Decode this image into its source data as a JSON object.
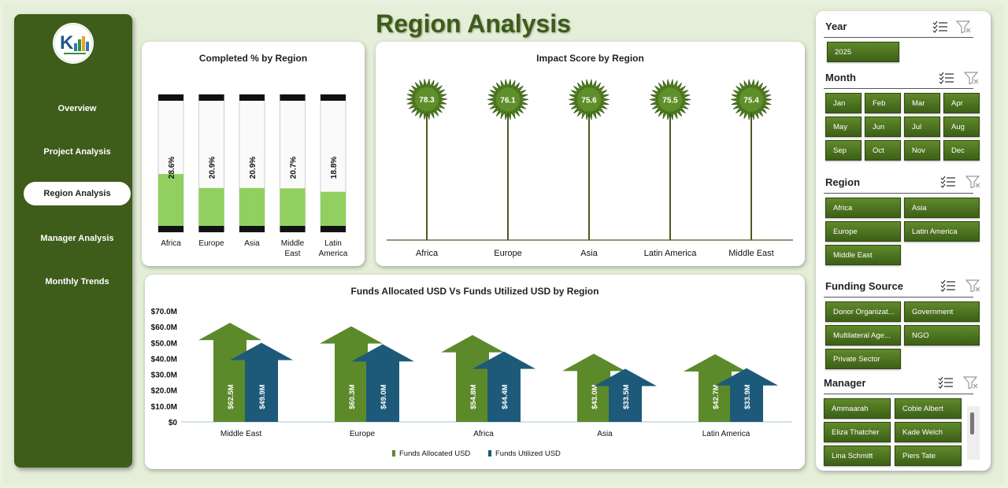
{
  "title": "Region Analysis",
  "colors": {
    "dark_green": "#3e5c1a",
    "bar_green": "#91d060",
    "allocated": "#5c8a2a",
    "utilized": "#1d5a7a",
    "stem": "#4d5a24"
  },
  "sidebar": {
    "items": [
      {
        "label": "Overview",
        "active": false
      },
      {
        "label": "Project Analysis",
        "active": false
      },
      {
        "label": "Region Analysis",
        "active": true
      },
      {
        "label": "Manager Analysis",
        "active": false
      },
      {
        "label": "Monthly Trends",
        "active": false
      }
    ]
  },
  "completed_chart": {
    "title": "Completed % by Region",
    "chart_data": {
      "type": "bar",
      "categories": [
        "Africa",
        "Europe",
        "Asia",
        "Middle East",
        "Latin America"
      ],
      "values": [
        28.6,
        20.9,
        20.9,
        20.7,
        18.8
      ],
      "labels": [
        "28.6%",
        "20.9%",
        "20.9%",
        "20.7%",
        "18.8%"
      ]
    }
  },
  "impact_chart": {
    "title": "Impact Score by Region",
    "chart_data": {
      "type": "scatter",
      "categories": [
        "Africa",
        "Europe",
        "Asia",
        "Latin America",
        "Middle East"
      ],
      "values": [
        78.3,
        76.1,
        75.6,
        75.5,
        75.4
      ]
    }
  },
  "funds_chart": {
    "title": "Funds Allocated USD Vs Funds Utilized USD by Region",
    "chart_data": {
      "type": "bar",
      "categories": [
        "Middle East",
        "Europe",
        "Africa",
        "Asia",
        "Latin America"
      ],
      "series": [
        {
          "name": "Funds Allocated USD",
          "values": [
            62.5,
            60.3,
            54.8,
            43.0,
            42.7
          ],
          "labels": [
            "$62.5M",
            "$60.3M",
            "$54.8M",
            "$43.0M",
            "$42.7M"
          ]
        },
        {
          "name": "Funds Utilized USD",
          "values": [
            49.9,
            49.0,
            44.4,
            33.5,
            33.9
          ],
          "labels": [
            "$49.9M",
            "$49.0M",
            "$44.4M",
            "$33.5M",
            "$33.9M"
          ]
        }
      ],
      "yticks": [
        "$70.0M",
        "$60.0M",
        "$50.0M",
        "$40.0M",
        "$30.0M",
        "$20.0M",
        "$10.0M",
        "$0"
      ],
      "ylim": [
        0,
        70
      ],
      "legend": "bottom"
    }
  },
  "filters": {
    "year": {
      "title": "Year",
      "options": [
        "2025"
      ]
    },
    "month": {
      "title": "Month",
      "options": [
        "Jan",
        "Feb",
        "Mar",
        "Apr",
        "May",
        "Jun",
        "Jul",
        "Aug",
        "Sep",
        "Oct",
        "Nov",
        "Dec"
      ]
    },
    "region": {
      "title": "Region",
      "options": [
        "Africa",
        "Asia",
        "Europe",
        "Latin America",
        "Middle East"
      ]
    },
    "funding": {
      "title": "Funding Source",
      "options": [
        "Donor Organizat...",
        "Government",
        "Multilateral Age...",
        "NGO",
        "Private Sector"
      ]
    },
    "manager": {
      "title": "Manager",
      "options": [
        "Ammaarah",
        "Cobie Albert",
        "Eliza Thatcher",
        "Kade Welch",
        "Lina Schmitt",
        "Piers Tate"
      ]
    }
  }
}
